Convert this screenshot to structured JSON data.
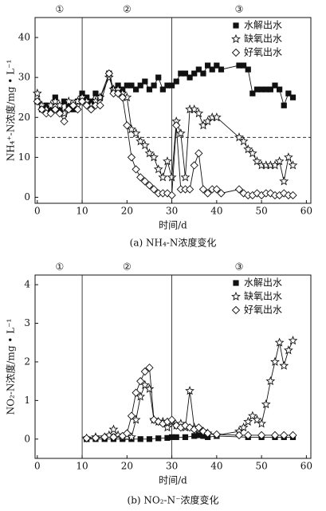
{
  "chart_data": [
    {
      "type": "line",
      "title": "(a) NH₄-N浓度变化",
      "x_label": "时间/d",
      "y_label": "NH₄⁺-N浓度/mg • L⁻¹",
      "annotations": [
        "①",
        "②",
        "③"
      ],
      "vlines": [
        10,
        30
      ],
      "hline": 15,
      "legend": "upper right",
      "xlim": [
        -0.5,
        61
      ],
      "ylim": [
        -1.5,
        45
      ],
      "xticks": [
        0,
        10,
        20,
        30,
        40,
        50,
        60
      ],
      "yticks": [
        0,
        10,
        20,
        30,
        40
      ],
      "series": [
        {
          "name": "水解出水",
          "color": "#111111",
          "marker": "square",
          "x": [
            0,
            1,
            2,
            3,
            4,
            5,
            6,
            7,
            8,
            9,
            10,
            11,
            12,
            13,
            14,
            16,
            17,
            18,
            19,
            20,
            21,
            22,
            23,
            24,
            25,
            26,
            27,
            28,
            29,
            30,
            31,
            32,
            33,
            34,
            35,
            36,
            37,
            38,
            39,
            40,
            41,
            45,
            46,
            47,
            48,
            49,
            50,
            51,
            52,
            53,
            54,
            55,
            56,
            57
          ],
          "values": [
            24,
            22,
            23,
            22,
            25,
            22,
            24,
            23,
            22,
            24,
            26,
            25,
            24,
            26,
            25,
            31,
            27,
            28,
            27,
            28,
            28,
            27,
            28,
            29,
            27,
            28,
            30,
            27,
            28,
            28,
            29,
            31,
            31,
            30,
            31,
            32,
            31,
            33,
            32,
            33,
            32,
            33,
            33,
            32,
            26,
            27,
            27,
            27,
            27,
            28,
            27,
            23,
            26,
            25
          ]
        },
        {
          "name": "缺氧出水",
          "color": "#111111",
          "marker": "star",
          "x": [
            0,
            1,
            2,
            3,
            4,
            5,
            6,
            7,
            8,
            9,
            10,
            11,
            12,
            13,
            14,
            16,
            17,
            18,
            19,
            20,
            21,
            22,
            23,
            24,
            25,
            26,
            27,
            28,
            29,
            30,
            31,
            32,
            33,
            34,
            35,
            36,
            37,
            38,
            39,
            40,
            45,
            46,
            47,
            48,
            49,
            50,
            51,
            52,
            53,
            54,
            55,
            56,
            57
          ],
          "values": [
            26,
            23,
            22,
            23,
            24,
            23,
            21,
            24,
            23,
            24,
            25,
            24,
            23,
            24,
            25,
            30,
            27,
            27,
            26,
            25,
            17,
            16,
            14,
            13,
            11,
            10,
            7,
            5,
            9,
            5,
            19,
            16,
            5,
            22,
            22,
            21,
            18,
            19,
            20,
            20,
            15,
            14,
            12,
            11,
            9,
            8,
            8,
            8,
            8,
            9,
            4,
            10,
            8
          ]
        },
        {
          "name": "好氧出水",
          "color": "#111111",
          "marker": "diamond",
          "x": [
            0,
            1,
            2,
            3,
            4,
            5,
            6,
            7,
            8,
            9,
            10,
            11,
            12,
            13,
            14,
            16,
            17,
            18,
            19,
            20,
            21,
            22,
            23,
            24,
            25,
            26,
            27,
            28,
            29,
            30,
            31,
            32,
            33,
            34,
            35,
            36,
            37,
            38,
            39,
            40,
            41,
            45,
            46,
            47,
            48,
            49,
            50,
            51,
            52,
            53,
            54,
            55,
            56,
            57
          ],
          "values": [
            24,
            22,
            21,
            21,
            22,
            21,
            19,
            22,
            23,
            22,
            24,
            23,
            22,
            23,
            23,
            31,
            26,
            26,
            25,
            18,
            10,
            7,
            5,
            4,
            3,
            2,
            1,
            1,
            1,
            0.5,
            18,
            2,
            2,
            2,
            8,
            11,
            2,
            1,
            2,
            2,
            1,
            2,
            1,
            0.5,
            0.5,
            1,
            0.5,
            1,
            1,
            0.5,
            0.5,
            1,
            0.5,
            0.5
          ]
        }
      ]
    },
    {
      "type": "line",
      "title": "(b) NO₂-N⁻浓度变化",
      "x_label": "时间/d",
      "y_label": "NO₂-N浓度/mg • L⁻¹",
      "annotations": [
        "①",
        "②",
        "③"
      ],
      "vlines": [
        10,
        30
      ],
      "legend": "upper right",
      "xlim": [
        -0.5,
        61
      ],
      "ylim": [
        -0.5,
        4.25
      ],
      "xticks": [
        0,
        10,
        20,
        30,
        40,
        50,
        60
      ],
      "yticks": [
        0,
        1,
        2,
        3,
        4
      ],
      "series": [
        {
          "name": "水解出水",
          "color": "#111111",
          "marker": "square",
          "x": [
            11,
            13,
            15,
            17,
            19,
            21,
            23,
            25,
            27,
            29,
            30,
            31,
            33,
            35,
            36,
            37,
            38,
            40,
            47,
            50,
            53,
            55,
            57
          ],
          "values": [
            0,
            0,
            0,
            0,
            0,
            0,
            0,
            0,
            0.02,
            0.03,
            0.05,
            0.05,
            0.05,
            0.08,
            0.1,
            0.08,
            0.05,
            0.08,
            0.05,
            0.05,
            0.05,
            0.05,
            0.05
          ]
        },
        {
          "name": "缺氧出水",
          "color": "#111111",
          "marker": "star",
          "x": [
            11,
            13,
            15,
            16,
            17,
            18,
            19,
            20,
            21,
            22,
            23,
            24,
            25,
            26,
            27,
            28,
            29,
            30,
            31,
            32,
            33,
            34,
            35,
            36,
            37,
            38,
            40,
            45,
            46,
            47,
            48,
            49,
            50,
            51,
            52,
            53,
            54,
            55,
            56,
            57
          ],
          "values": [
            0.02,
            0.05,
            0.05,
            0.1,
            0.25,
            0.1,
            0.05,
            0.05,
            0.05,
            0.5,
            1.1,
            1.4,
            1.3,
            0.5,
            0.45,
            0.45,
            0.3,
            0.45,
            0.35,
            0.4,
            0.3,
            1.25,
            0.3,
            0.25,
            0.2,
            0.15,
            0.1,
            0.2,
            0.3,
            0.45,
            0.6,
            0.5,
            0.4,
            0.9,
            1.5,
            2.0,
            2.5,
            1.9,
            2.3,
            2.55
          ]
        },
        {
          "name": "好氧出水",
          "color": "#111111",
          "marker": "diamond",
          "x": [
            11,
            13,
            15,
            17,
            19,
            20,
            21,
            22,
            23,
            24,
            25,
            26,
            27,
            28,
            29,
            30,
            31,
            32,
            33,
            34,
            35,
            36,
            37,
            38,
            40,
            45,
            47,
            50,
            53,
            55,
            57
          ],
          "values": [
            0.02,
            0.03,
            0.05,
            0.05,
            0.08,
            0.15,
            0.6,
            1.2,
            1.5,
            1.75,
            1.85,
            0.5,
            0.45,
            0.4,
            0.45,
            0.5,
            0.35,
            0.3,
            0.35,
            0.3,
            0.25,
            0.3,
            0.2,
            0.15,
            0.12,
            0.1,
            0.1,
            0.1,
            0.1,
            0.1,
            0.1
          ]
        }
      ]
    }
  ]
}
